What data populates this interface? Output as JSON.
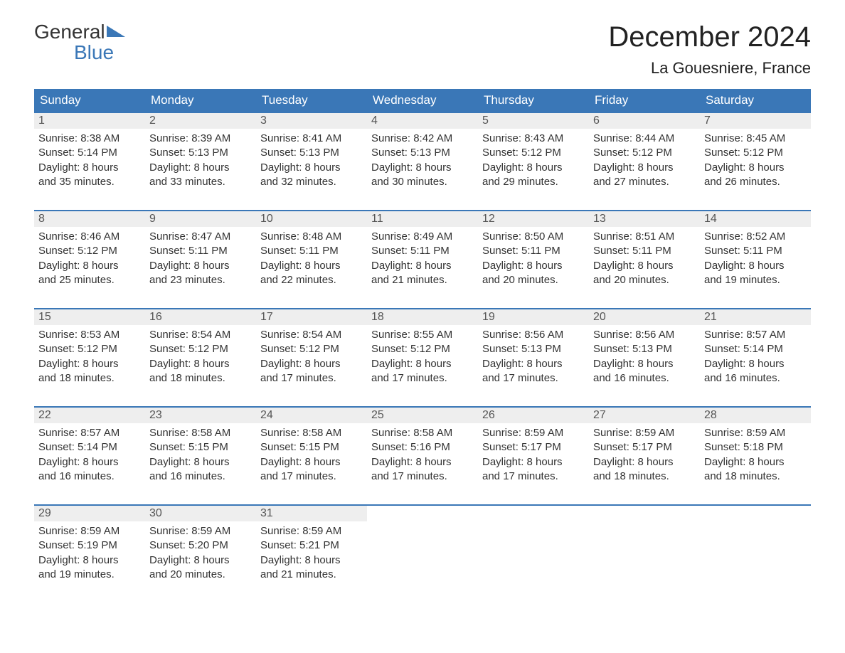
{
  "brand": {
    "line1": "General",
    "line2": "Blue",
    "accent_color": "#3a77b7"
  },
  "title": "December 2024",
  "location": "La Gouesniere, France",
  "colors": {
    "header_bg": "#3a77b7",
    "header_text": "#ffffff",
    "daynum_bg": "#eeeeee",
    "daynum_text": "#555555",
    "body_text": "#333333",
    "page_bg": "#ffffff",
    "week_border": "#3a77b7"
  },
  "weekdays": [
    "Sunday",
    "Monday",
    "Tuesday",
    "Wednesday",
    "Thursday",
    "Friday",
    "Saturday"
  ],
  "weeks": [
    [
      {
        "n": "1",
        "sunrise": "Sunrise: 8:38 AM",
        "sunset": "Sunset: 5:14 PM",
        "day1": "Daylight: 8 hours",
        "day2": "and 35 minutes."
      },
      {
        "n": "2",
        "sunrise": "Sunrise: 8:39 AM",
        "sunset": "Sunset: 5:13 PM",
        "day1": "Daylight: 8 hours",
        "day2": "and 33 minutes."
      },
      {
        "n": "3",
        "sunrise": "Sunrise: 8:41 AM",
        "sunset": "Sunset: 5:13 PM",
        "day1": "Daylight: 8 hours",
        "day2": "and 32 minutes."
      },
      {
        "n": "4",
        "sunrise": "Sunrise: 8:42 AM",
        "sunset": "Sunset: 5:13 PM",
        "day1": "Daylight: 8 hours",
        "day2": "and 30 minutes."
      },
      {
        "n": "5",
        "sunrise": "Sunrise: 8:43 AM",
        "sunset": "Sunset: 5:12 PM",
        "day1": "Daylight: 8 hours",
        "day2": "and 29 minutes."
      },
      {
        "n": "6",
        "sunrise": "Sunrise: 8:44 AM",
        "sunset": "Sunset: 5:12 PM",
        "day1": "Daylight: 8 hours",
        "day2": "and 27 minutes."
      },
      {
        "n": "7",
        "sunrise": "Sunrise: 8:45 AM",
        "sunset": "Sunset: 5:12 PM",
        "day1": "Daylight: 8 hours",
        "day2": "and 26 minutes."
      }
    ],
    [
      {
        "n": "8",
        "sunrise": "Sunrise: 8:46 AM",
        "sunset": "Sunset: 5:12 PM",
        "day1": "Daylight: 8 hours",
        "day2": "and 25 minutes."
      },
      {
        "n": "9",
        "sunrise": "Sunrise: 8:47 AM",
        "sunset": "Sunset: 5:11 PM",
        "day1": "Daylight: 8 hours",
        "day2": "and 23 minutes."
      },
      {
        "n": "10",
        "sunrise": "Sunrise: 8:48 AM",
        "sunset": "Sunset: 5:11 PM",
        "day1": "Daylight: 8 hours",
        "day2": "and 22 minutes."
      },
      {
        "n": "11",
        "sunrise": "Sunrise: 8:49 AM",
        "sunset": "Sunset: 5:11 PM",
        "day1": "Daylight: 8 hours",
        "day2": "and 21 minutes."
      },
      {
        "n": "12",
        "sunrise": "Sunrise: 8:50 AM",
        "sunset": "Sunset: 5:11 PM",
        "day1": "Daylight: 8 hours",
        "day2": "and 20 minutes."
      },
      {
        "n": "13",
        "sunrise": "Sunrise: 8:51 AM",
        "sunset": "Sunset: 5:11 PM",
        "day1": "Daylight: 8 hours",
        "day2": "and 20 minutes."
      },
      {
        "n": "14",
        "sunrise": "Sunrise: 8:52 AM",
        "sunset": "Sunset: 5:11 PM",
        "day1": "Daylight: 8 hours",
        "day2": "and 19 minutes."
      }
    ],
    [
      {
        "n": "15",
        "sunrise": "Sunrise: 8:53 AM",
        "sunset": "Sunset: 5:12 PM",
        "day1": "Daylight: 8 hours",
        "day2": "and 18 minutes."
      },
      {
        "n": "16",
        "sunrise": "Sunrise: 8:54 AM",
        "sunset": "Sunset: 5:12 PM",
        "day1": "Daylight: 8 hours",
        "day2": "and 18 minutes."
      },
      {
        "n": "17",
        "sunrise": "Sunrise: 8:54 AM",
        "sunset": "Sunset: 5:12 PM",
        "day1": "Daylight: 8 hours",
        "day2": "and 17 minutes."
      },
      {
        "n": "18",
        "sunrise": "Sunrise: 8:55 AM",
        "sunset": "Sunset: 5:12 PM",
        "day1": "Daylight: 8 hours",
        "day2": "and 17 minutes."
      },
      {
        "n": "19",
        "sunrise": "Sunrise: 8:56 AM",
        "sunset": "Sunset: 5:13 PM",
        "day1": "Daylight: 8 hours",
        "day2": "and 17 minutes."
      },
      {
        "n": "20",
        "sunrise": "Sunrise: 8:56 AM",
        "sunset": "Sunset: 5:13 PM",
        "day1": "Daylight: 8 hours",
        "day2": "and 16 minutes."
      },
      {
        "n": "21",
        "sunrise": "Sunrise: 8:57 AM",
        "sunset": "Sunset: 5:14 PM",
        "day1": "Daylight: 8 hours",
        "day2": "and 16 minutes."
      }
    ],
    [
      {
        "n": "22",
        "sunrise": "Sunrise: 8:57 AM",
        "sunset": "Sunset: 5:14 PM",
        "day1": "Daylight: 8 hours",
        "day2": "and 16 minutes."
      },
      {
        "n": "23",
        "sunrise": "Sunrise: 8:58 AM",
        "sunset": "Sunset: 5:15 PM",
        "day1": "Daylight: 8 hours",
        "day2": "and 16 minutes."
      },
      {
        "n": "24",
        "sunrise": "Sunrise: 8:58 AM",
        "sunset": "Sunset: 5:15 PM",
        "day1": "Daylight: 8 hours",
        "day2": "and 17 minutes."
      },
      {
        "n": "25",
        "sunrise": "Sunrise: 8:58 AM",
        "sunset": "Sunset: 5:16 PM",
        "day1": "Daylight: 8 hours",
        "day2": "and 17 minutes."
      },
      {
        "n": "26",
        "sunrise": "Sunrise: 8:59 AM",
        "sunset": "Sunset: 5:17 PM",
        "day1": "Daylight: 8 hours",
        "day2": "and 17 minutes."
      },
      {
        "n": "27",
        "sunrise": "Sunrise: 8:59 AM",
        "sunset": "Sunset: 5:17 PM",
        "day1": "Daylight: 8 hours",
        "day2": "and 18 minutes."
      },
      {
        "n": "28",
        "sunrise": "Sunrise: 8:59 AM",
        "sunset": "Sunset: 5:18 PM",
        "day1": "Daylight: 8 hours",
        "day2": "and 18 minutes."
      }
    ],
    [
      {
        "n": "29",
        "sunrise": "Sunrise: 8:59 AM",
        "sunset": "Sunset: 5:19 PM",
        "day1": "Daylight: 8 hours",
        "day2": "and 19 minutes."
      },
      {
        "n": "30",
        "sunrise": "Sunrise: 8:59 AM",
        "sunset": "Sunset: 5:20 PM",
        "day1": "Daylight: 8 hours",
        "day2": "and 20 minutes."
      },
      {
        "n": "31",
        "sunrise": "Sunrise: 8:59 AM",
        "sunset": "Sunset: 5:21 PM",
        "day1": "Daylight: 8 hours",
        "day2": "and 21 minutes."
      },
      {
        "empty": true
      },
      {
        "empty": true
      },
      {
        "empty": true
      },
      {
        "empty": true
      }
    ]
  ]
}
